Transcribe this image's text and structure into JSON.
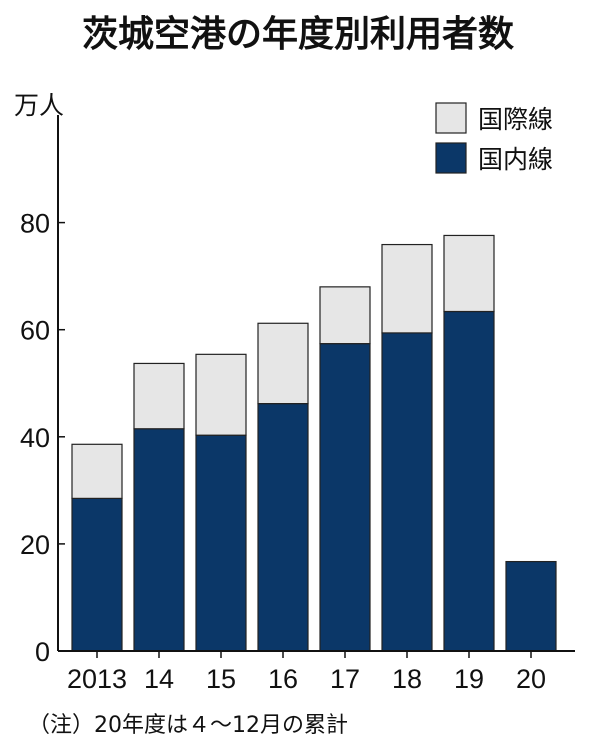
{
  "chart_data": {
    "type": "bar",
    "stacked": true,
    "title": "茨城空港の年度別利用者数",
    "y_unit": "万人",
    "categories": [
      "2013",
      "14",
      "15",
      "16",
      "17",
      "18",
      "19",
      "20"
    ],
    "series": [
      {
        "name": "国内線",
        "color": "#0b3768",
        "values": [
          28.5,
          41.5,
          40.3,
          46.2,
          57.4,
          59.4,
          63.4,
          16.7
        ]
      },
      {
        "name": "国際線",
        "color": "#e6e6e6",
        "values": [
          10.1,
          12.2,
          15.1,
          15.0,
          10.6,
          16.5,
          14.2,
          0
        ]
      }
    ],
    "ylim": [
      0,
      100
    ],
    "yticks": [
      0,
      20,
      40,
      60,
      80
    ],
    "grid": false,
    "legend_position": "top-right",
    "note": "（注）20年度は４～12月の累計"
  }
}
